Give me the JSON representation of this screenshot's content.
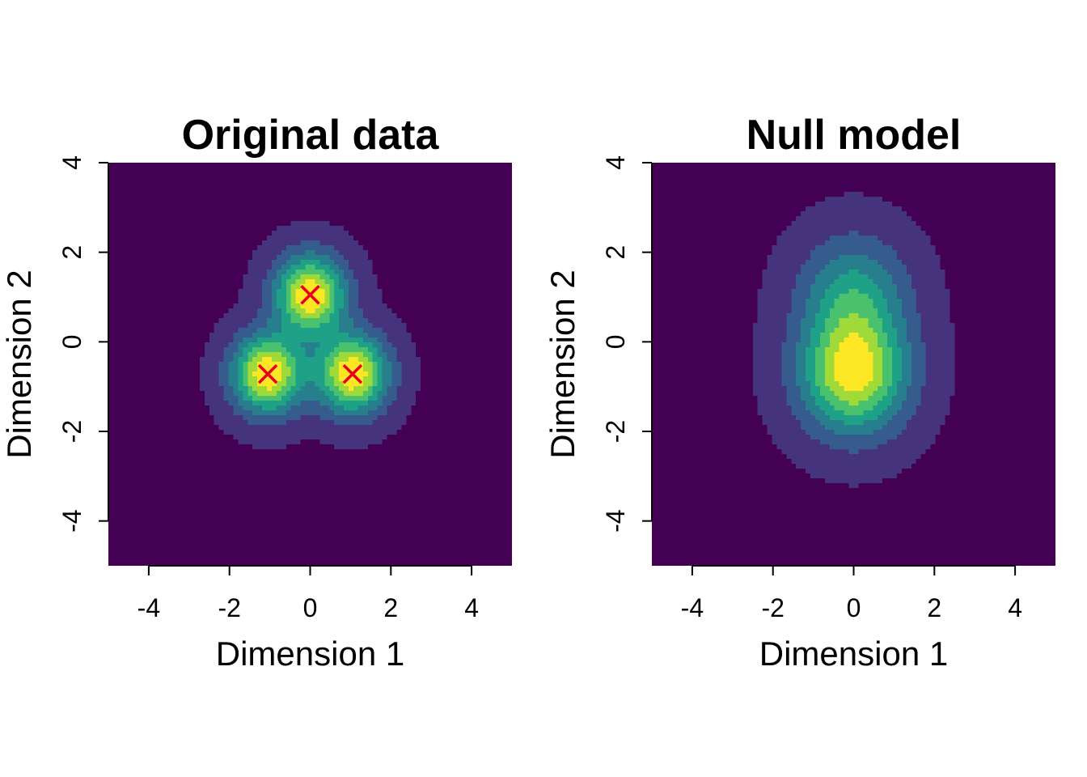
{
  "chart_data": [
    {
      "type": "heatmap",
      "title": "Original data",
      "xlabel": "Dimension 1",
      "ylabel": "Dimension 2",
      "xlim": [
        -5,
        5
      ],
      "ylim": [
        -5,
        4
      ],
      "xticks": [
        -4,
        -2,
        0,
        2,
        4
      ],
      "yticks": [
        -4,
        -2,
        0,
        2,
        4
      ],
      "colormap": [
        "#440154",
        "#46337e",
        "#365c8d",
        "#277f8e",
        "#1fa187",
        "#4ac16d",
        "#a0da39",
        "#fde725"
      ],
      "density_components": [
        {
          "x": 0.0,
          "y": 1.05,
          "sigma": 0.6,
          "weight": 1.0
        },
        {
          "x": -1.05,
          "y": -0.72,
          "sigma": 0.6,
          "weight": 1.0
        },
        {
          "x": 1.05,
          "y": -0.72,
          "sigma": 0.6,
          "weight": 1.0
        }
      ],
      "markers": {
        "symbol": "x",
        "color": "#e8001c",
        "points": [
          {
            "x": 0.0,
            "y": 1.05
          },
          {
            "x": -1.05,
            "y": -0.72
          },
          {
            "x": 1.05,
            "y": -0.72
          }
        ]
      }
    },
    {
      "type": "heatmap",
      "title": "Null model",
      "xlabel": "Dimension 1",
      "ylabel": "Dimension 2",
      "xlim": [
        -5,
        5
      ],
      "ylim": [
        -5,
        4
      ],
      "xticks": [
        -4,
        -2,
        0,
        2,
        4
      ],
      "yticks": [
        -4,
        -2,
        0,
        2,
        4
      ],
      "colormap": [
        "#440154",
        "#46337e",
        "#365c8d",
        "#277f8e",
        "#1fa187",
        "#4ac16d",
        "#a0da39",
        "#fde725"
      ],
      "density_components": [
        {
          "x": 0.0,
          "y": 1.05,
          "sigma": 0.9,
          "weight": 1.0
        },
        {
          "x": 0.0,
          "y": -0.72,
          "sigma": 0.9,
          "weight": 2.0
        }
      ]
    }
  ]
}
